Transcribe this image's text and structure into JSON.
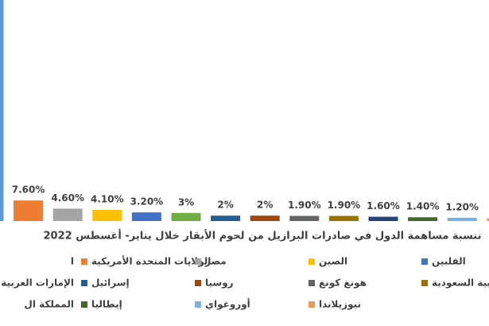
{
  "chart_data": {
    "type": "bar",
    "title": "ننسبة مساهمة الدول في صادرات البرازيل من لحوم الأبقار خلال يناير- أغسطس 2022",
    "categories": [
      "ا",
      "الولايات المتحدة الأمريكية",
      "مصر",
      "الصين",
      "الفلبين",
      "الإمارات العربية ال",
      "إسرائيل",
      "روسيا",
      "هونغ كونغ",
      "عربية السعودية",
      "المملكة ال",
      "إيطاليا",
      "أوروغواي",
      "نيوزيلاندا"
    ],
    "values": [
      85,
      7.6,
      4.6,
      4.1,
      3.2,
      3,
      2,
      2,
      1.9,
      1.9,
      1.6,
      1.4,
      1.2,
      1
    ],
    "value_labels": [
      null,
      "7.60%",
      "4.60%",
      "4.10%",
      "3.20%",
      "3%",
      "2%",
      "2%",
      "1.90%",
      "1.90%",
      "1.60%",
      "1.40%",
      "1.20%",
      null
    ],
    "colors": [
      "#5b9bd5",
      "#ed7d31",
      "#a5a5a5",
      "#ffc000",
      "#4472c4",
      "#70ad47",
      "#255e91",
      "#9e480e",
      "#636363",
      "#997300",
      "#264478",
      "#43682b",
      "#7cafdd",
      "#f1975a"
    ]
  }
}
